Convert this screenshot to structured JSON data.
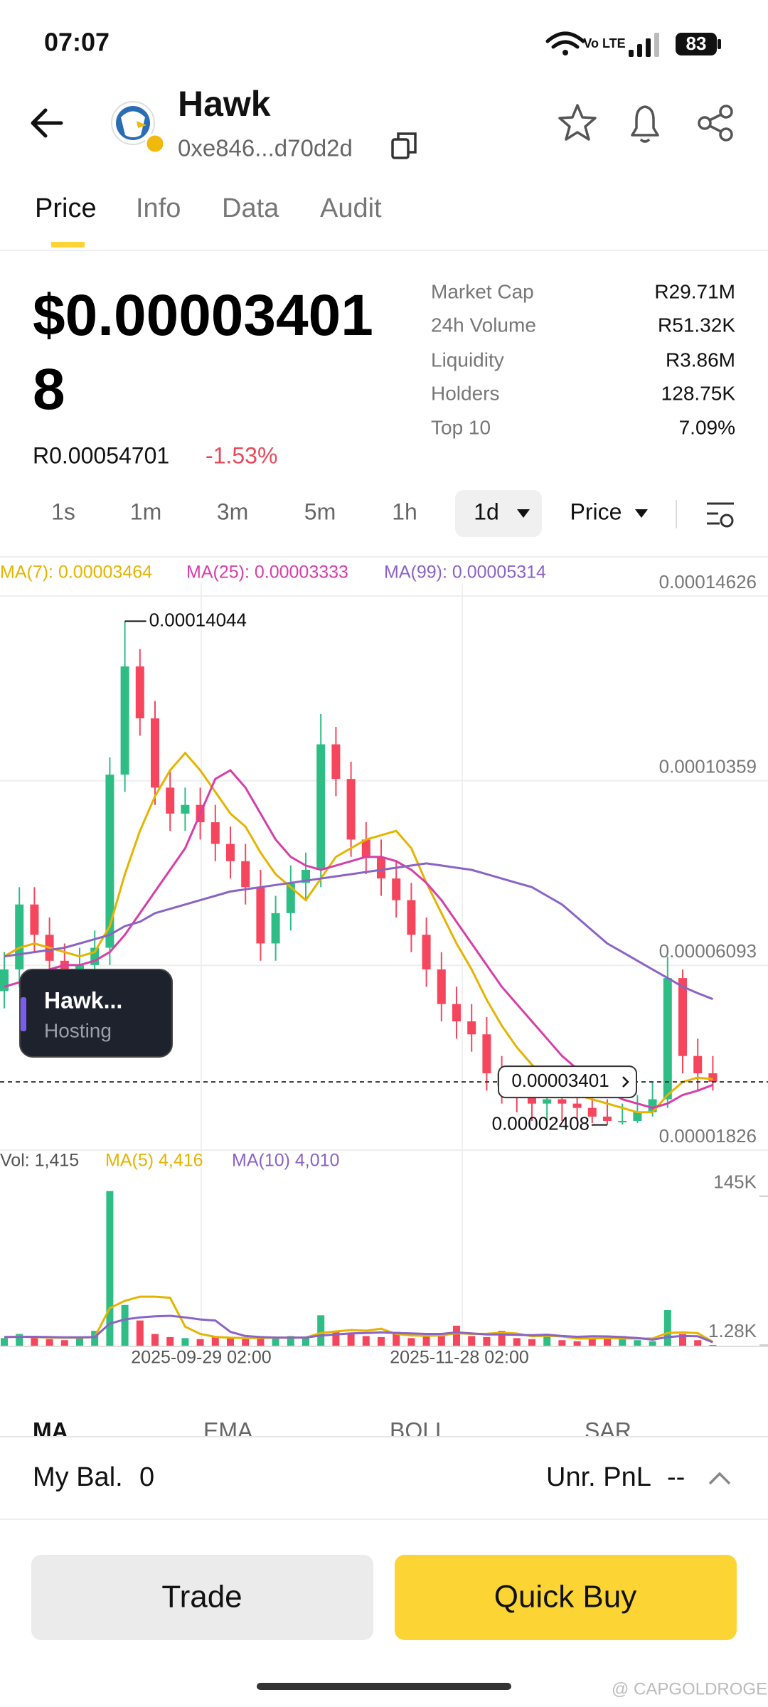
{
  "status_bar": {
    "time": "07:07",
    "network": "Vo LTE",
    "battery": "83"
  },
  "header": {
    "name": "Hawk",
    "address": "0xe846...d70d2d"
  },
  "tabs": [
    "Price",
    "Info",
    "Data",
    "Audit"
  ],
  "price": {
    "usd": "$0.000034018",
    "local": "R0.00054701",
    "change": "-1.53%"
  },
  "stats": [
    {
      "label": "Market Cap",
      "value": "R29.71M"
    },
    {
      "label": "24h Volume",
      "value": "R51.32K"
    },
    {
      "label": "Liquidity",
      "value": "R3.86M"
    },
    {
      "label": "Holders",
      "value": "128.75K"
    },
    {
      "label": "Top 10",
      "value": "7.09%"
    }
  ],
  "timeframes": [
    "1s",
    "1m",
    "3m",
    "5m",
    "1h",
    "1d"
  ],
  "chart_mode": "Price",
  "chart_data": [
    {
      "type": "candlestick",
      "ylim": [
        1.826e-05,
        0.00014626
      ],
      "yticks": [
        0.00014626,
        0.00010359,
        6.093e-05,
        1.826e-05
      ],
      "grid": true,
      "up_color": "#2ebd85",
      "down_color": "#f6465d",
      "open": [
        5.5e-05,
        6e-05,
        7.5e-05,
        6.8e-05,
        6.2e-05,
        5.8e-05,
        6.1e-05,
        6.5e-05,
        0.000105,
        0.00013,
        0.000118,
        0.000102,
        9.6e-05,
        9.8e-05,
        9.4e-05,
        8.9e-05,
        8.5e-05,
        7.9e-05,
        6.6e-05,
        7.3e-05,
        8e-05,
        8.3e-05,
        0.000112,
        0.000104,
        9e-05,
        8.6e-05,
        8.1e-05,
        7.6e-05,
        6.8e-05,
        6e-05,
        5.2e-05,
        4.8e-05,
        4.5e-05,
        3.6e-05,
        3.3e-05,
        3.1e-05,
        2.9e-05,
        3e-05,
        2.9e-05,
        2.8e-05,
        2.6e-05,
        2.5e-05,
        2.5e-05,
        2.7e-05,
        3e-05,
        5.8e-05,
        4e-05,
        3.6e-05
      ],
      "high": [
        6.4e-05,
        7.9e-05,
        7.9e-05,
        7.2e-05,
        6.6e-05,
        6.5e-05,
        6.9e-05,
        0.000109,
        0.00014044,
        0.000134,
        0.000122,
        0.000106,
        0.000102,
        0.000102,
        9.8e-05,
        9.3e-05,
        8.9e-05,
        8.3e-05,
        7.7e-05,
        8.4e-05,
        8.7e-05,
        0.000119,
        0.000116,
        0.000108,
        9.4e-05,
        9e-05,
        8.5e-05,
        8e-05,
        7.2e-05,
        6.4e-05,
        5.6e-05,
        5.2e-05,
        4.9e-05,
        4e-05,
        3.7e-05,
        3.5e-05,
        3.4e-05,
        3.4e-05,
        3.3e-05,
        3.2e-05,
        3e-05,
        2.9e-05,
        3.1e-05,
        3.4e-05,
        6.3e-05,
        6e-05,
        4.4e-05,
        4e-05
      ],
      "low": [
        5.1e-05,
        5.6e-05,
        6.4e-05,
        5.8e-05,
        5.4e-05,
        5.4e-05,
        5.7e-05,
        6.1e-05,
        0.000101,
        0.000114,
        9.8e-05,
        9.2e-05,
        9.2e-05,
        9e-05,
        8.5e-05,
        8.1e-05,
        7.5e-05,
        6.2e-05,
        6.2e-05,
        6.9e-05,
        7.6e-05,
        7.9e-05,
        0.0001,
        8.6e-05,
        8.2e-05,
        7.7e-05,
        7.2e-05,
        6.4e-05,
        5.6e-05,
        4.8e-05,
        4.4e-05,
        4.1e-05,
        3.2e-05,
        2.9e-05,
        2.7e-05,
        2.5e-05,
        2.5e-05,
        2.5e-05,
        2.5e-05,
        2.45e-05,
        2.408e-05,
        2.42e-05,
        2.45e-05,
        2.6e-05,
        2.8e-05,
        3.6e-05,
        3.2e-05,
        3.2e-05
      ],
      "close": [
        6e-05,
        7.5e-05,
        6.8e-05,
        6.2e-05,
        5.8e-05,
        6.1e-05,
        6.5e-05,
        0.000105,
        0.00013,
        0.000118,
        0.000102,
        9.6e-05,
        9.8e-05,
        9.4e-05,
        8.9e-05,
        8.5e-05,
        7.9e-05,
        6.6e-05,
        7.3e-05,
        8e-05,
        8.3e-05,
        0.000112,
        0.000104,
        9e-05,
        8.6e-05,
        8.1e-05,
        7.6e-05,
        6.8e-05,
        6e-05,
        5.2e-05,
        4.8e-05,
        4.5e-05,
        3.6e-05,
        3.3e-05,
        3.1e-05,
        2.9e-05,
        3e-05,
        2.9e-05,
        2.8e-05,
        2.6e-05,
        2.5e-05,
        2.5e-05,
        2.7e-05,
        3e-05,
        5.8e-05,
        4e-05,
        3.6e-05,
        3.401e-05
      ],
      "series": [
        {
          "name": "MA(7): 0.00003464",
          "color": "#e5b400",
          "values": [
            6.3e-05,
            6.5e-05,
            6.6e-05,
            6.5e-05,
            6.4e-05,
            6.3e-05,
            6.4e-05,
            7e-05,
            8.2e-05,
            9.2e-05,
            0.0001,
            0.000106,
            0.00011,
            0.000106,
            0.000101,
            9.6e-05,
            9.3e-05,
            8.7e-05,
            8.2e-05,
            7.9e-05,
            7.6e-05,
            8.1e-05,
            8.6e-05,
            8.8e-05,
            9e-05,
            9.1e-05,
            9.2e-05,
            8.8e-05,
            8e-05,
            7.3e-05,
            6.6e-05,
            6e-05,
            5.3e-05,
            4.7e-05,
            4.2e-05,
            3.8e-05,
            3.5e-05,
            3.3e-05,
            3.1e-05,
            3e-05,
            2.9e-05,
            2.8e-05,
            2.7e-05,
            2.7e-05,
            3.1e-05,
            3.4e-05,
            3.5e-05,
            3.464e-05
          ]
        },
        {
          "name": "MA(25): 0.00003333",
          "color": "#d63fa8",
          "values": [
            5.6e-05,
            5.7e-05,
            5.9e-05,
            6e-05,
            6.1e-05,
            6.1e-05,
            6.2e-05,
            6.4e-05,
            6.8e-05,
            7.3e-05,
            7.8e-05,
            8.3e-05,
            8.8e-05,
            9.6e-05,
            0.000104,
            0.000106,
            0.000102,
            9.6e-05,
            9e-05,
            8.6e-05,
            8.4e-05,
            8.3e-05,
            8.4e-05,
            8.5e-05,
            8.6e-05,
            8.6e-05,
            8.5e-05,
            8.3e-05,
            8e-05,
            7.6e-05,
            7.1e-05,
            6.6e-05,
            6.1e-05,
            5.6e-05,
            5.2e-05,
            4.8e-05,
            4.4e-05,
            4e-05,
            3.7e-05,
            3.4e-05,
            3.2e-05,
            3e-05,
            2.9e-05,
            2.8e-05,
            2.9e-05,
            3.1e-05,
            3.2e-05,
            3.333e-05
          ]
        },
        {
          "name": "MA(99): 0.00005314",
          "color": "#8a63c6",
          "values": [
            6.3e-05,
            6.35e-05,
            6.4e-05,
            6.45e-05,
            6.5e-05,
            6.6e-05,
            6.7e-05,
            6.8e-05,
            7e-05,
            7.1e-05,
            7.3e-05,
            7.4e-05,
            7.5e-05,
            7.6e-05,
            7.7e-05,
            7.8e-05,
            7.85e-05,
            7.9e-05,
            7.95e-05,
            8e-05,
            8.05e-05,
            8.1e-05,
            8.15e-05,
            8.2e-05,
            8.25e-05,
            8.3e-05,
            8.35e-05,
            8.4e-05,
            8.45e-05,
            8.4e-05,
            8.35e-05,
            8.3e-05,
            8.2e-05,
            8.1e-05,
            8e-05,
            7.9e-05,
            7.7e-05,
            7.5e-05,
            7.2e-05,
            6.9e-05,
            6.6e-05,
            6.4e-05,
            6.2e-05,
            6e-05,
            5.8e-05,
            5.6e-05,
            5.45e-05,
            5.314e-05
          ]
        }
      ]
    },
    {
      "type": "bar",
      "title": "Vol: 1,415",
      "ylim": [
        0,
        160000
      ],
      "yticks": [
        {
          "value": 145000,
          "label": "145K"
        },
        {
          "value": 1280,
          "label": "1.28K"
        }
      ],
      "x_labels": [
        "2025-09-29 02:00",
        "2025-11-28 02:00"
      ],
      "values": [
        8000,
        12000,
        9000,
        7000,
        6000,
        8000,
        15000,
        150000,
        40000,
        25000,
        12000,
        9000,
        8000,
        7000,
        10000,
        8000,
        7000,
        9000,
        8000,
        10000,
        9000,
        30000,
        15000,
        12000,
        10000,
        9000,
        14000,
        8000,
        10000,
        12000,
        20000,
        10000,
        9000,
        15000,
        8000,
        7000,
        12000,
        6000,
        5000,
        8000,
        9000,
        10000,
        6000,
        5000,
        35000,
        12000,
        6000,
        1415
      ],
      "series": [
        {
          "name": "MA(5) 4,416",
          "color": "#e5b400",
          "values": [
            9000,
            9500,
            9000,
            8500,
            8400,
            8400,
            9000,
            37000,
            44000,
            48000,
            48000,
            47000,
            19000,
            12000,
            9200,
            8400,
            8000,
            8200,
            8400,
            8400,
            8600,
            13000,
            14400,
            15800,
            15200,
            17000,
            12000,
            10600,
            10200,
            10600,
            12800,
            12000,
            12200,
            13200,
            12400,
            9800,
            10200,
            9600,
            7600,
            7600,
            8000,
            7600,
            7600,
            7600,
            13000,
            13600,
            12800,
            4416
          ]
        },
        {
          "name": "MA(10) 4,010",
          "color": "#8a63c6",
          "values": [
            9000,
            9200,
            9300,
            9000,
            8800,
            8700,
            9000,
            22000,
            26000,
            28000,
            29000,
            29500,
            28000,
            26000,
            25000,
            14000,
            10000,
            9000,
            8600,
            8500,
            8500,
            10500,
            11500,
            12500,
            13000,
            13500,
            13000,
            12500,
            12000,
            12000,
            13500,
            12500,
            11500,
            11500,
            11200,
            10800,
            11300,
            10000,
            9300,
            9800,
            9600,
            9000,
            8000,
            6500,
            9000,
            10000,
            9800,
            4010
          ]
        }
      ]
    }
  ],
  "floating_window": {
    "title": "Hawk...",
    "subtitle": "Hosting"
  },
  "indicators": [
    "MA",
    "EMA",
    "BOLL",
    "SAR"
  ],
  "balance": {
    "label": "My Bal.",
    "value": "0",
    "pnl_label": "Unr. PnL",
    "pnl_value": "--"
  },
  "buttons": [
    "Trade",
    "Quick Buy"
  ],
  "watermark": "@ CAPGOLDROGER"
}
